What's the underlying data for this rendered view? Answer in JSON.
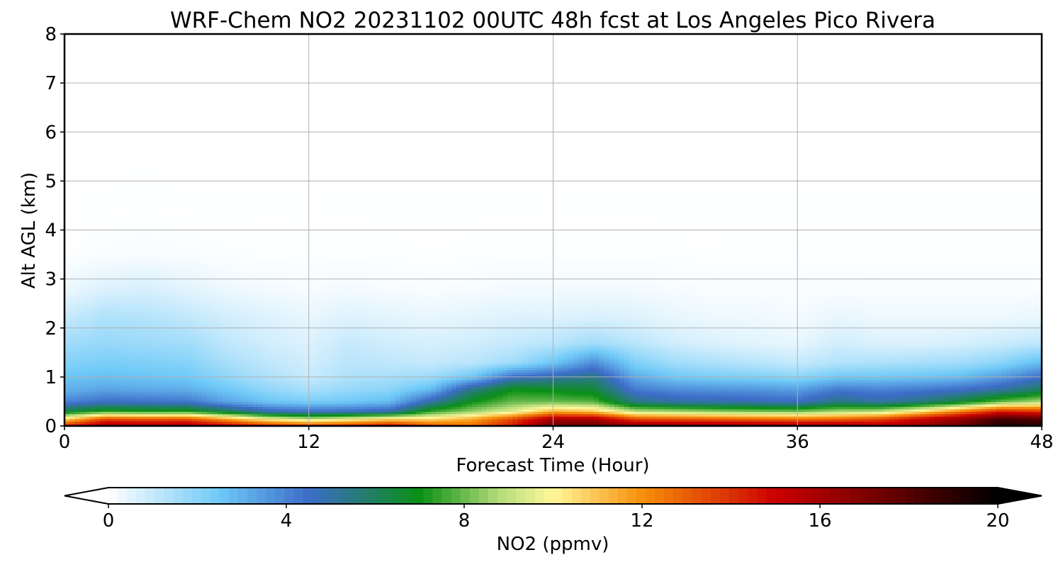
{
  "chart_data": {
    "type": "heatmap",
    "title": "WRF-Chem NO2  20231102 00UTC 48h fcst at Los Angeles Pico Rivera",
    "xlabel": "Forecast Time (Hour)",
    "ylabel": "Alt AGL (km)",
    "xlim": [
      0,
      48
    ],
    "ylim": [
      0,
      8
    ],
    "xticks": [
      0,
      12,
      24,
      36,
      48
    ],
    "yticks": [
      0,
      1,
      2,
      3,
      4,
      5,
      6,
      7,
      8
    ],
    "grid": true,
    "colorbar": {
      "label": "NO2  (ppmv)",
      "orientation": "horizontal",
      "placement": "bottom",
      "range": [
        0,
        20
      ],
      "ticks": [
        0,
        4,
        8,
        12,
        16,
        20
      ],
      "extend": "both",
      "colormap": [
        {
          "value": 0,
          "color": "#ffffff"
        },
        {
          "value": 2.5,
          "color": "#6ec9f7"
        },
        {
          "value": 4.5,
          "color": "#3d6cc8"
        },
        {
          "value": 7,
          "color": "#0a8f15"
        },
        {
          "value": 8.8,
          "color": "#b5dc7a"
        },
        {
          "value": 10,
          "color": "#fff79a"
        },
        {
          "value": 12,
          "color": "#f78f0a"
        },
        {
          "value": 15,
          "color": "#cc0000"
        },
        {
          "value": 17.5,
          "color": "#6a0000"
        },
        {
          "value": 20,
          "color": "#000000"
        }
      ]
    },
    "hours": [
      0,
      2,
      4,
      6,
      8,
      10,
      12,
      14,
      16,
      18,
      20,
      22,
      24,
      26,
      28,
      30,
      32,
      34,
      36,
      38,
      40,
      42,
      44,
      46,
      48
    ],
    "altitudes_km": [
      0,
      0.15,
      0.3,
      0.5,
      0.75,
      1.0,
      1.3,
      1.7,
      2.2,
      2.8,
      3.5,
      4.5,
      6,
      8
    ],
    "no2_ppmv": [
      [
        14.5,
        16.5,
        16.3,
        16.4,
        15.5,
        14.5,
        14.0,
        14.4,
        15.2,
        13.5,
        12.8,
        14.5,
        17.6,
        17.7,
        17.2,
        17.0,
        16.9,
        16.8,
        16.7,
        16.8,
        16.0,
        16.5,
        17.5,
        19.5,
        19.2
      ],
      [
        10.5,
        13.5,
        13.2,
        13.3,
        11.5,
        9.8,
        9.0,
        9.6,
        10.5,
        10.5,
        11.5,
        13.5,
        16.0,
        16.0,
        13.5,
        13.2,
        13.0,
        12.8,
        12.6,
        12.8,
        13.5,
        15.0,
        16.5,
        18.5,
        18.0
      ],
      [
        6.5,
        7.5,
        7.3,
        7.4,
        6.2,
        4.8,
        4.5,
        4.6,
        4.9,
        7.5,
        8.5,
        9.5,
        11.5,
        11.0,
        9.0,
        8.8,
        8.5,
        8.3,
        8.2,
        8.8,
        9.0,
        10.5,
        12.5,
        14.5,
        14.0
      ],
      [
        4.0,
        4.5,
        4.4,
        4.3,
        3.3,
        2.6,
        2.3,
        2.5,
        2.8,
        5.0,
        7.0,
        8.0,
        8.0,
        7.8,
        5.5,
        5.0,
        4.9,
        4.8,
        4.6,
        5.5,
        5.0,
        5.5,
        6.5,
        8.0,
        8.8
      ],
      [
        3.0,
        3.3,
        3.2,
        3.1,
        2.5,
        1.9,
        1.5,
        1.8,
        2.0,
        2.8,
        5.5,
        7.0,
        6.8,
        6.5,
        4.2,
        3.8,
        3.7,
        3.6,
        3.4,
        4.2,
        4.0,
        4.2,
        4.5,
        5.0,
        6.0
      ],
      [
        2.6,
        2.7,
        2.6,
        2.5,
        1.9,
        1.4,
        1.0,
        1.4,
        1.5,
        1.7,
        2.5,
        4.5,
        5.0,
        5.5,
        3.2,
        2.5,
        2.3,
        2.2,
        2.0,
        2.5,
        2.5,
        2.6,
        2.8,
        3.5,
        4.5
      ],
      [
        2.1,
        2.3,
        2.2,
        2.1,
        1.5,
        1.1,
        0.8,
        1.2,
        1.1,
        1.0,
        1.2,
        1.6,
        2.5,
        3.8,
        2.2,
        1.6,
        1.4,
        1.2,
        1.0,
        1.3,
        1.4,
        1.5,
        1.6,
        2.0,
        2.8
      ],
      [
        1.6,
        1.8,
        1.7,
        1.6,
        1.1,
        0.8,
        0.6,
        1.0,
        0.8,
        0.7,
        0.8,
        1.0,
        1.2,
        1.6,
        1.2,
        0.8,
        0.6,
        0.5,
        0.4,
        0.8,
        0.6,
        0.6,
        0.7,
        0.9,
        1.1
      ],
      [
        1.0,
        1.4,
        1.3,
        1.1,
        0.8,
        0.6,
        0.4,
        0.6,
        0.5,
        0.4,
        0.5,
        0.6,
        0.6,
        0.7,
        0.6,
        0.4,
        0.3,
        0.3,
        0.2,
        0.4,
        0.3,
        0.3,
        0.3,
        0.3,
        0.4
      ],
      [
        0.3,
        0.6,
        0.7,
        0.5,
        0.3,
        0.2,
        0.15,
        0.2,
        0.15,
        0.1,
        0.15,
        0.2,
        0.2,
        0.2,
        0.2,
        0.15,
        0.1,
        0.1,
        0.1,
        0.12,
        0.1,
        0.1,
        0.1,
        0.1,
        0.1
      ],
      [
        0.05,
        0.1,
        0.12,
        0.1,
        0.06,
        0.05,
        0.04,
        0.05,
        0.04,
        0.03,
        0.04,
        0.05,
        0.05,
        0.05,
        0.05,
        0.04,
        0.03,
        0.03,
        0.03,
        0.03,
        0.03,
        0.03,
        0.03,
        0.03,
        0.03
      ],
      [
        0.01,
        0.01,
        0.02,
        0.01,
        0.01,
        0.01,
        0.01,
        0.01,
        0.01,
        0.01,
        0.01,
        0.01,
        0.01,
        0.01,
        0.01,
        0.01,
        0.01,
        0.01,
        0.01,
        0.01,
        0.01,
        0.01,
        0.01,
        0.01,
        0.01
      ],
      [
        0,
        0,
        0,
        0,
        0,
        0,
        0,
        0,
        0,
        0,
        0,
        0,
        0,
        0,
        0,
        0,
        0,
        0,
        0,
        0,
        0,
        0,
        0,
        0,
        0
      ],
      [
        0,
        0,
        0,
        0,
        0,
        0,
        0,
        0,
        0,
        0,
        0,
        0,
        0,
        0,
        0,
        0,
        0,
        0,
        0,
        0,
        0,
        0,
        0,
        0,
        0
      ]
    ]
  }
}
